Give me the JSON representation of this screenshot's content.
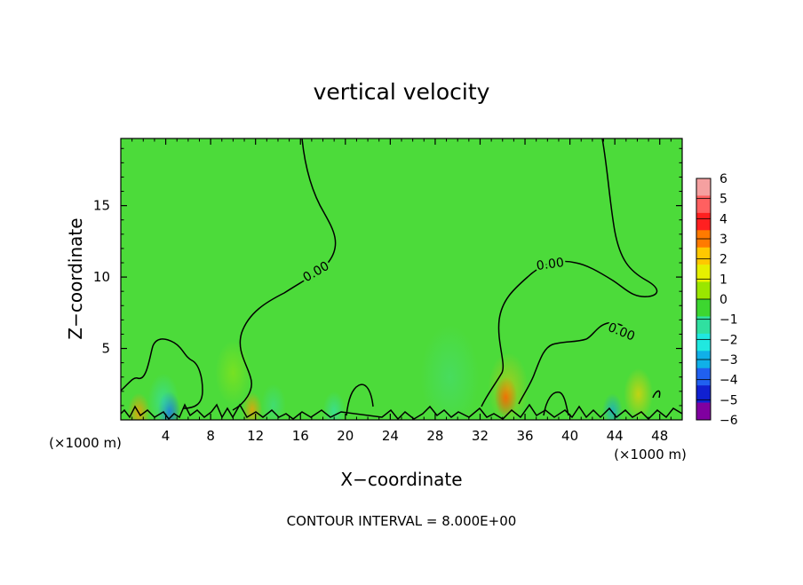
{
  "chart_data": {
    "type": "heatmap",
    "title": "vertical velocity",
    "xlabel": "X−coordinate",
    "ylabel": "Z−coordinate",
    "x_unit": "(×1000 m)",
    "x_ticks": [
      4,
      8,
      12,
      16,
      20,
      24,
      28,
      32,
      36,
      40,
      44,
      48
    ],
    "y_ticks": [
      5,
      10,
      15
    ],
    "xlim": [
      0,
      50
    ],
    "ylim": [
      0,
      19.7
    ],
    "contour_label": "0.00",
    "footer": "CONTOUR INTERVAL = 8.000E+00",
    "colorbar": {
      "levels": [
        6,
        5,
        4,
        3,
        2,
        1,
        0,
        -1,
        -2,
        -3,
        -4,
        -5,
        -6
      ],
      "labels": [
        "6",
        "5",
        "4",
        "3",
        "2",
        "1",
        "0",
        "−1",
        "−2",
        "−3",
        "−4",
        "−5",
        "−6"
      ],
      "colors": [
        "#f5a0a0",
        "#ff6060",
        "#ff2020",
        "#ff7a00",
        "#ffc800",
        "#e6f000",
        "#9ae600",
        "#3dd630",
        "#30e0a0",
        "#20e8e0",
        "#10b0e8",
        "#2060f0",
        "#1020d0",
        "#8000a0"
      ]
    },
    "background_color": "#4cdb3a",
    "blobs": [
      {
        "x": 1.6,
        "z": 0.5,
        "r": 1.0,
        "color": "#ff9a00",
        "alpha": 0.8
      },
      {
        "x": 4.3,
        "z": 0.6,
        "r": 1.0,
        "color": "#1050f0",
        "alpha": 0.85
      },
      {
        "x": 3.8,
        "z": 1.3,
        "r": 1.4,
        "color": "#30e0c0",
        "alpha": 0.6
      },
      {
        "x": 11.7,
        "z": 0.7,
        "r": 0.9,
        "color": "#ff9a00",
        "alpha": 0.75
      },
      {
        "x": 19.0,
        "z": 0.6,
        "r": 1.0,
        "color": "#30e0c0",
        "alpha": 0.6
      },
      {
        "x": 29.3,
        "z": 3.0,
        "r": 2.6,
        "color": "#40e0a0",
        "alpha": 0.35
      },
      {
        "x": 34.3,
        "z": 1.6,
        "r": 1.0,
        "color": "#ff2a00",
        "alpha": 0.85
      },
      {
        "x": 34.5,
        "z": 2.2,
        "r": 1.8,
        "color": "#ffc000",
        "alpha": 0.5
      },
      {
        "x": 46.1,
        "z": 1.8,
        "r": 1.3,
        "color": "#ffd000",
        "alpha": 0.65
      },
      {
        "x": 43.8,
        "z": 0.6,
        "r": 0.9,
        "color": "#10a0e8",
        "alpha": 0.7
      },
      {
        "x": 10.0,
        "z": 3.3,
        "r": 1.6,
        "color": "#b8ea00",
        "alpha": 0.4
      },
      {
        "x": 13.6,
        "z": 1.0,
        "r": 1.1,
        "color": "#30e0c0",
        "alpha": 0.4
      }
    ]
  }
}
